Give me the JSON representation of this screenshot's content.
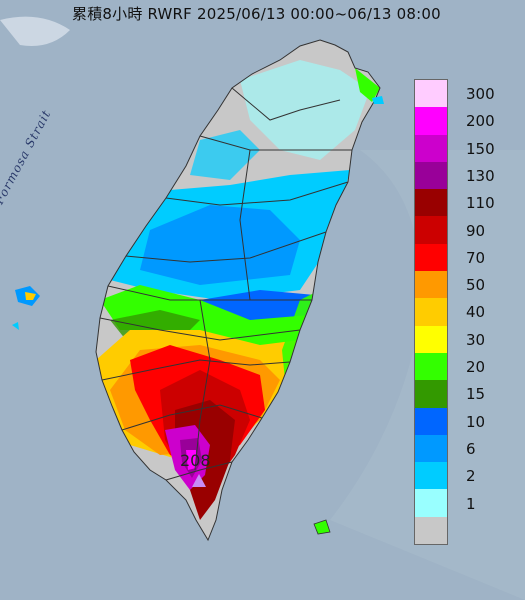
{
  "title": "累積8小時 RWRF 2025/06/13 00:00~06/13 08:00",
  "map_label": "Formosa Strait",
  "peak_value": "208",
  "legend": [
    {
      "label": "300",
      "color": "#ffccff"
    },
    {
      "label": "200",
      "color": "#ff00ff"
    },
    {
      "label": "150",
      "color": "#cc00cc"
    },
    {
      "label": "130",
      "color": "#990099"
    },
    {
      "label": "110",
      "color": "#990000"
    },
    {
      "label": "90",
      "color": "#cc0000"
    },
    {
      "label": "70",
      "color": "#ff0000"
    },
    {
      "label": "50",
      "color": "#ff9900"
    },
    {
      "label": "40",
      "color": "#ffcc00"
    },
    {
      "label": "30",
      "color": "#ffff00"
    },
    {
      "label": "20",
      "color": "#33ff00"
    },
    {
      "label": "15",
      "color": "#339900"
    },
    {
      "label": "10",
      "color": "#0066ff"
    },
    {
      "label": "6",
      "color": "#0099ff"
    },
    {
      "label": "2",
      "color": "#00ccff"
    },
    {
      "label": "1",
      "color": "#99ffff"
    },
    {
      "label": "",
      "color": "#c8c8c8"
    }
  ],
  "colors": {
    "sea": "#9fb3c6",
    "land_no_rain": "#c8c8c8",
    "peak_marker": "#c78cf7"
  }
}
